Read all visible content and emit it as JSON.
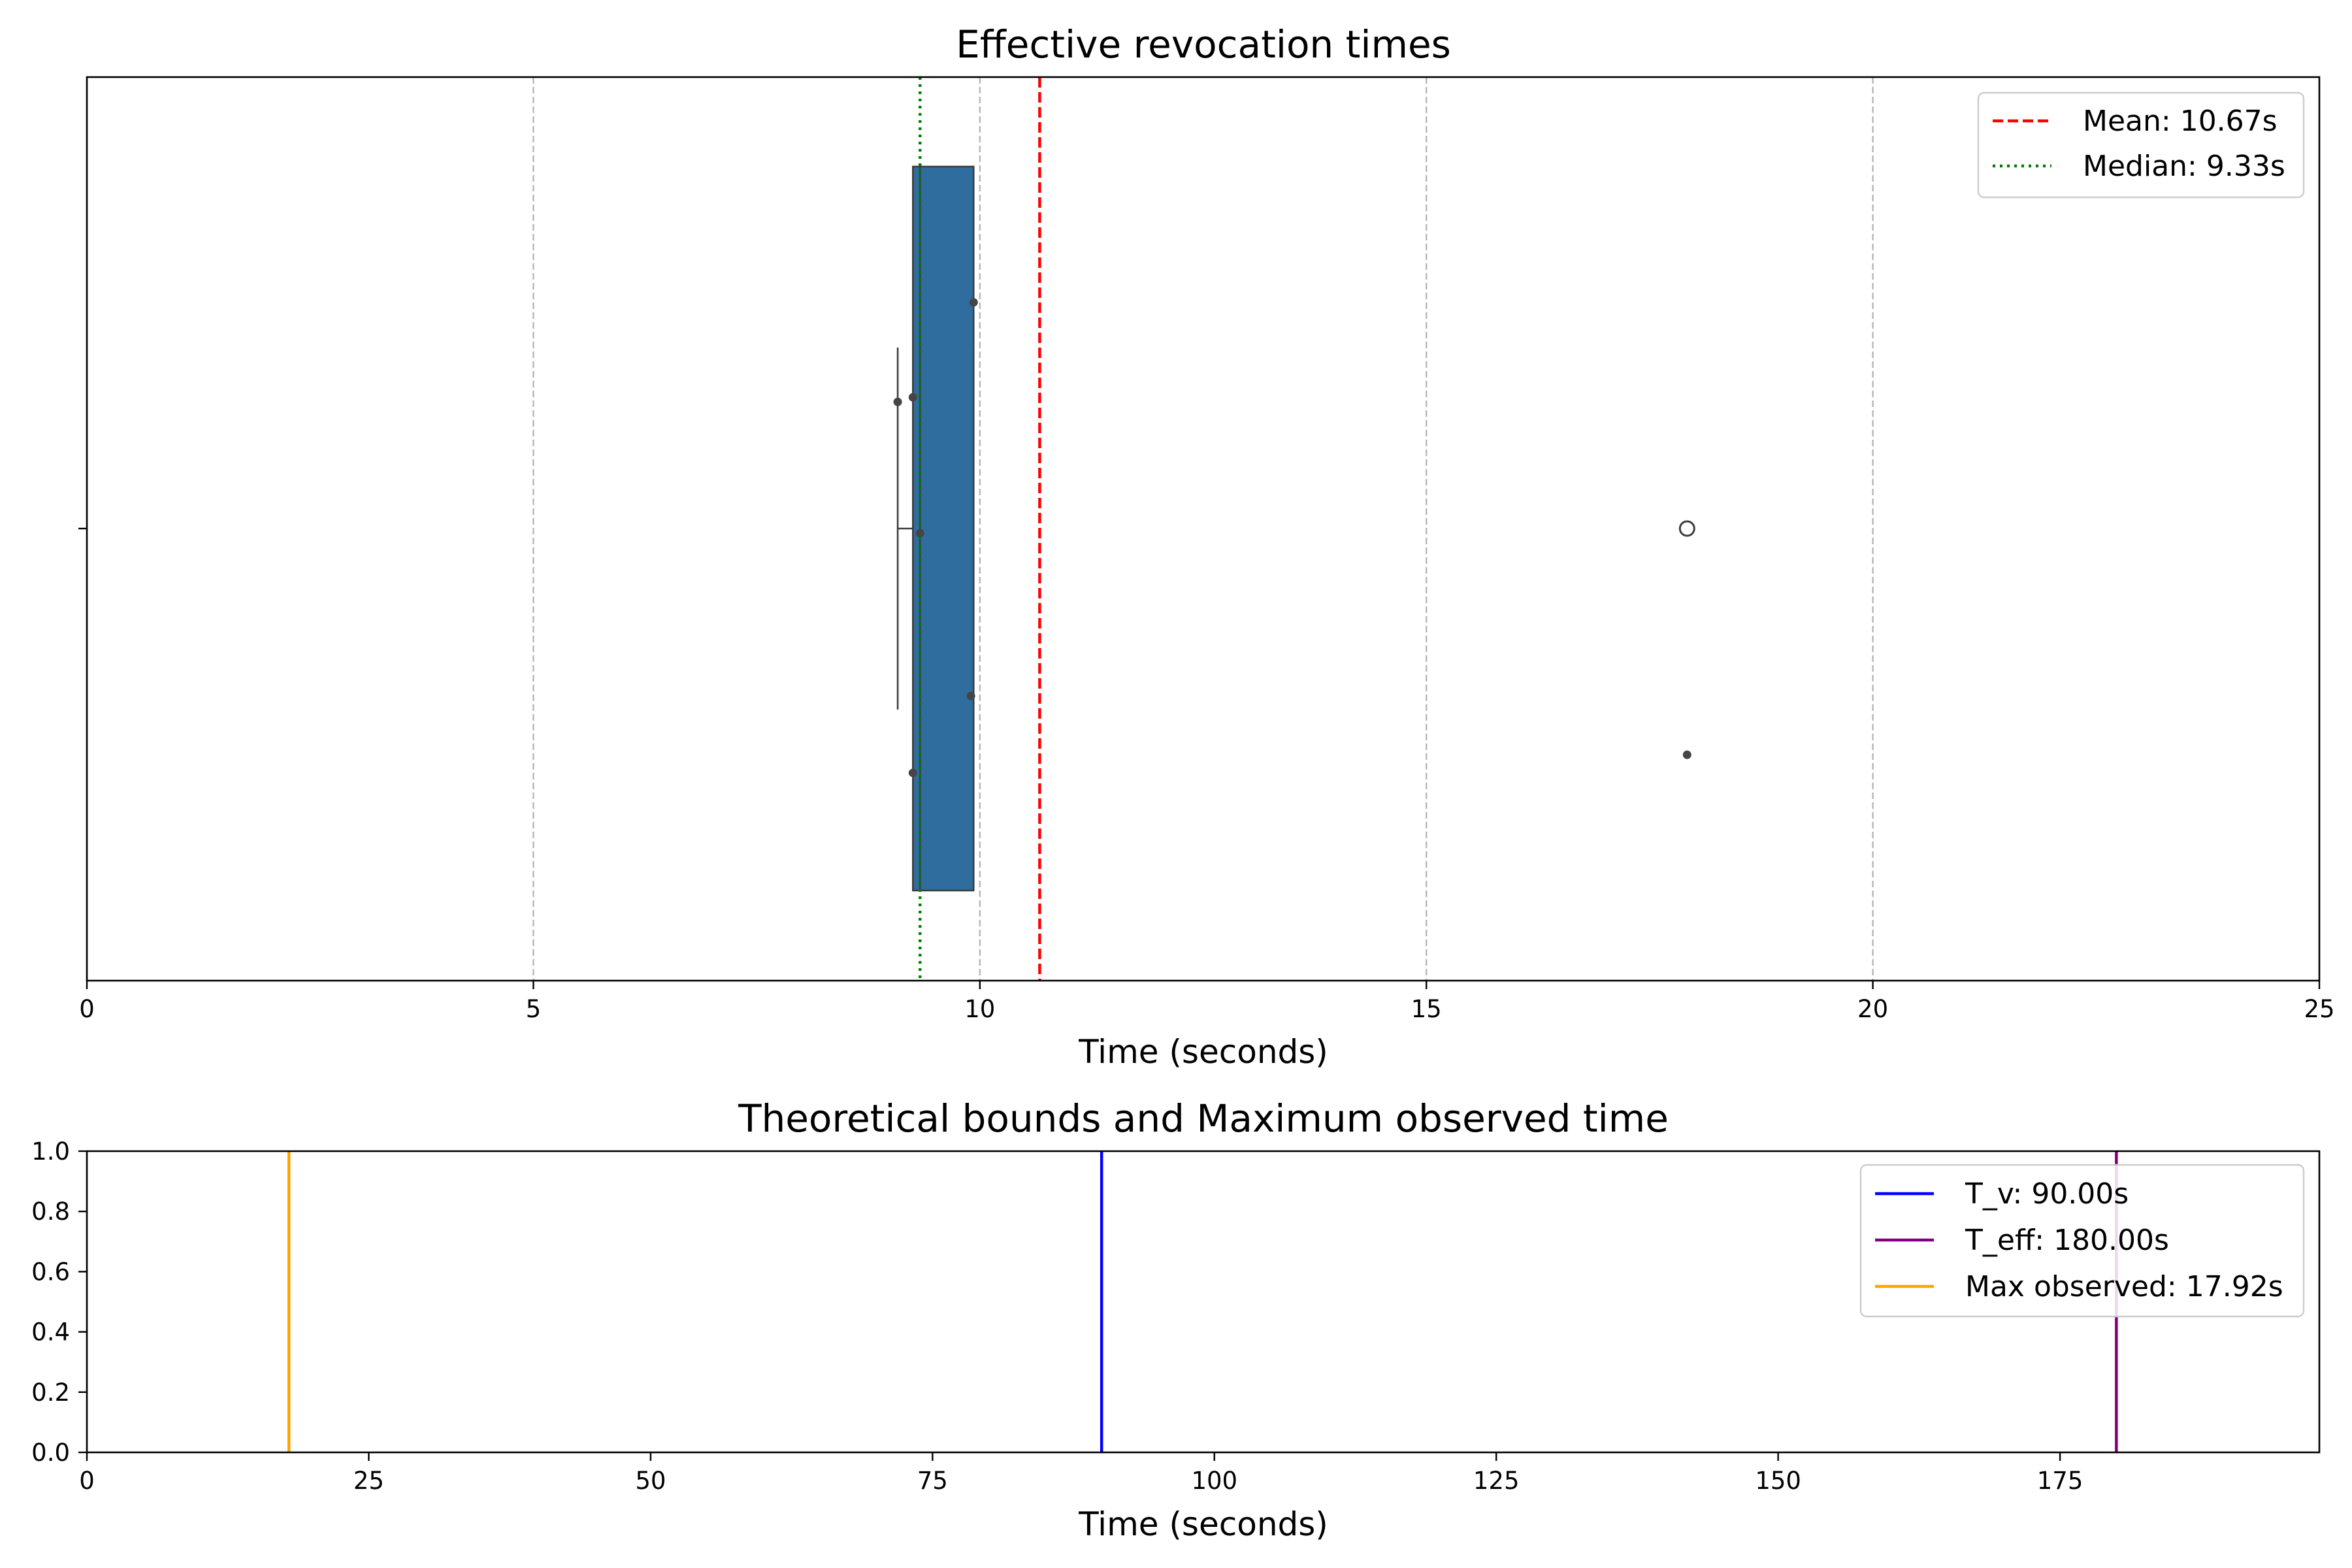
{
  "chart_data": [
    {
      "type": "box",
      "title": "Effective revocation times",
      "xlabel": "Time (seconds)",
      "ylabel": "",
      "xlim": [
        0,
        25
      ],
      "xticks": [
        0,
        5,
        10,
        15,
        20,
        25
      ],
      "grid": "vertical dashed",
      "legend_position": "top-right",
      "box": {
        "whisker_low": 9.08,
        "q1": 9.25,
        "median": 9.33,
        "q3": 9.93,
        "whisker_high": 9.93
      },
      "outliers": [
        17.92
      ],
      "points": [
        {
          "x": 9.93,
          "jitter": -0.5
        },
        {
          "x": 9.08,
          "jitter": -0.28
        },
        {
          "x": 9.25,
          "jitter": -0.29
        },
        {
          "x": 9.33,
          "jitter": 0.01
        },
        {
          "x": 9.9,
          "jitter": 0.37
        },
        {
          "x": 9.25,
          "jitter": 0.54
        },
        {
          "x": 17.92,
          "jitter": 0.5
        }
      ],
      "reference_lines": [
        {
          "name": "Mean: 10.67s",
          "x": 10.67,
          "color": "#ff0000",
          "style": "dashed"
        },
        {
          "name": "Median: 9.33s",
          "x": 9.33,
          "color": "#008000",
          "style": "dotted"
        }
      ],
      "colors": {
        "box": "#2f6d9f",
        "edge": "#3d3d3d",
        "grid": "#b0b0b0"
      }
    },
    {
      "type": "line",
      "title": "Theoretical bounds and Maximum observed time",
      "xlabel": "Time (seconds)",
      "ylabel": "",
      "xlim": [
        0,
        198
      ],
      "ylim": [
        0,
        1
      ],
      "xticks": [
        0,
        25,
        50,
        75,
        100,
        125,
        150,
        175
      ],
      "yticks": [
        "0.0",
        "0.2",
        "0.4",
        "0.6",
        "0.8",
        "1.0"
      ],
      "legend_position": "top-right",
      "series": [
        {
          "name": "T_v: 90.00s",
          "x": 90,
          "color": "#0000ff"
        },
        {
          "name": "T_eff: 180.00s",
          "x": 180,
          "color": "#800080"
        },
        {
          "name": "Max observed: 17.92s",
          "x": 17.92,
          "color": "#ffa500"
        }
      ]
    }
  ]
}
